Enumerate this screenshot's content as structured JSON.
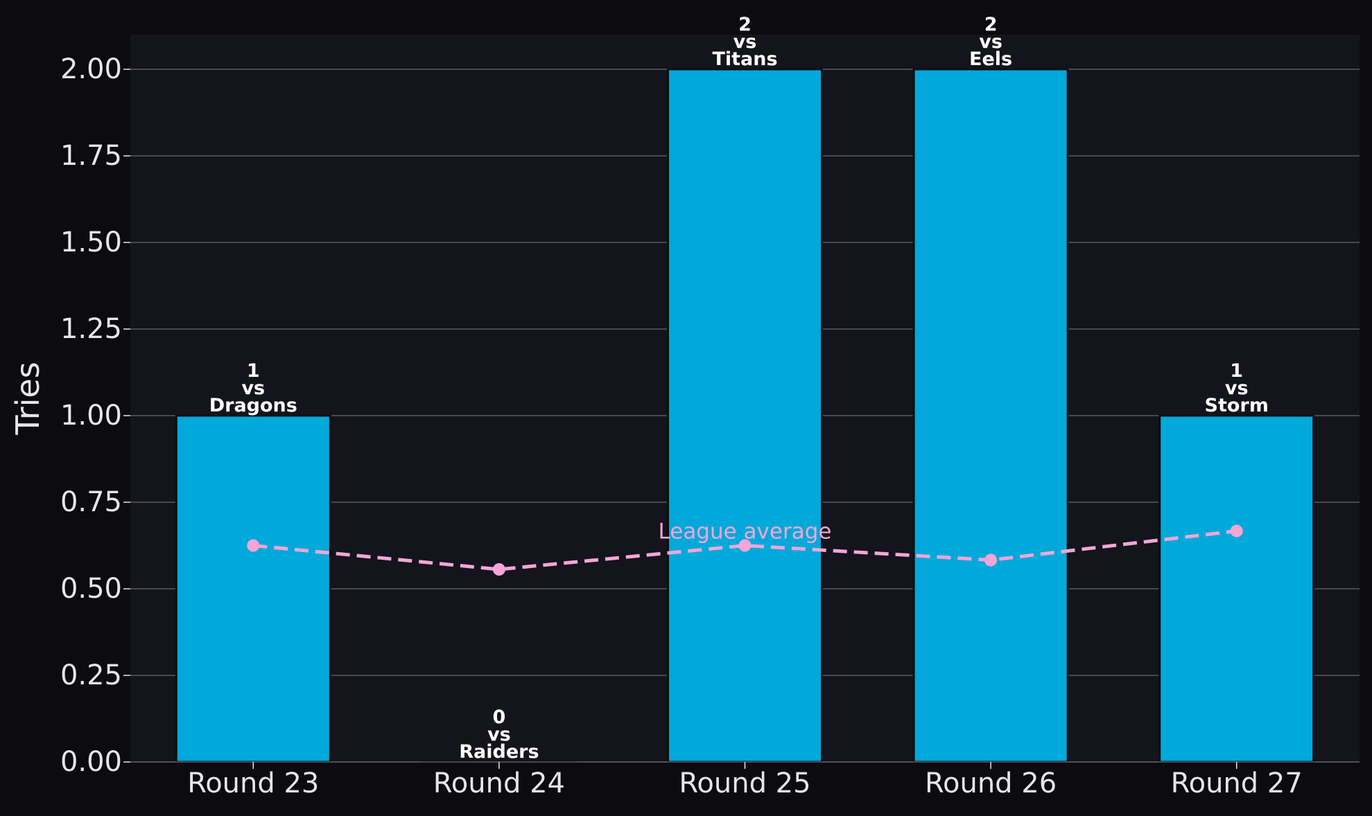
{
  "chart_data": {
    "type": "bar",
    "title": "",
    "xlabel": "",
    "ylabel": "Tries",
    "ylim": [
      0,
      2.1
    ],
    "yticks": [
      "0.00",
      "0.25",
      "0.50",
      "0.75",
      "1.00",
      "1.25",
      "1.50",
      "1.75",
      "2.00"
    ],
    "categories": [
      "Round 23",
      "Round 24",
      "Round 25",
      "Round 26",
      "Round 27"
    ],
    "series": [
      {
        "type": "bar",
        "values": [
          1,
          0,
          2,
          2,
          1
        ],
        "labels": [
          [
            "1",
            "vs",
            "Dragons"
          ],
          [
            "0",
            "vs",
            "Raiders"
          ],
          [
            "2",
            "vs",
            "Titans"
          ],
          [
            "2",
            "vs",
            "Eels"
          ],
          [
            "1",
            "vs",
            "Storm"
          ]
        ]
      },
      {
        "type": "line",
        "name": "League average",
        "style": "dashed",
        "values": [
          0.625,
          0.556,
          0.625,
          0.583,
          0.667
        ]
      }
    ],
    "grid": "horizontal",
    "legend": "none"
  },
  "colors": {
    "page_background": "#0b0b10",
    "plot_background": "#14141c",
    "bar": "#00a9d9",
    "bar_edge": "#0e0e14",
    "average_line": "#f4a6d7",
    "grid": "#5a5a60",
    "tick_text": "#e6e6e6",
    "bar_label_text": "#ffffff"
  }
}
